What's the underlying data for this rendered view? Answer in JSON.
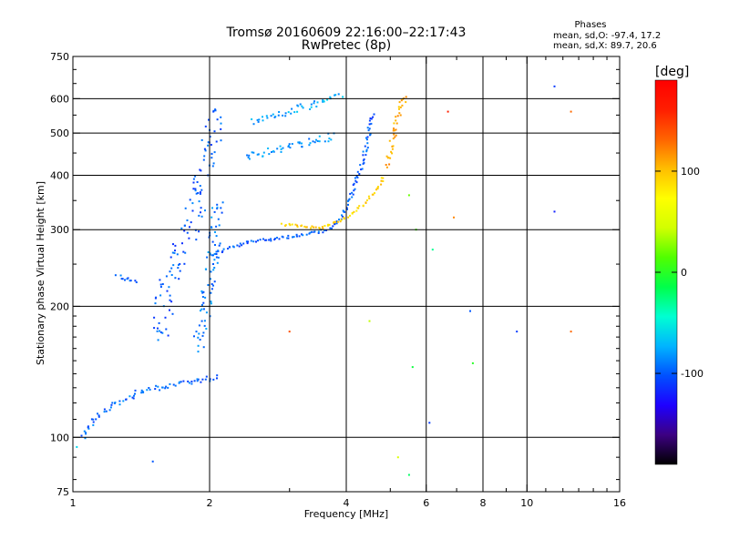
{
  "header": {
    "title_line1": "Tromsø 20160609 22:16:00–22:17:43",
    "title_line2": "RwPretec (8p)"
  },
  "stats": {
    "heading": "Phases",
    "line_o": "mean, sd,O: -97.4, 17.2",
    "line_x": "mean, sd,X:  89.7, 20.6"
  },
  "colorbar": {
    "unit_label": "[deg]",
    "ticks": [
      {
        "value": 100,
        "label": "100"
      },
      {
        "value": 0,
        "label": "0"
      },
      {
        "value": -100,
        "label": "-100"
      }
    ],
    "range": [
      -190,
      190
    ],
    "palette": [
      "#000000",
      "#3c0082",
      "#1e00ff",
      "#0050ff",
      "#00b4ff",
      "#00ffd2",
      "#00ff4b",
      "#50ff00",
      "#d2ff00",
      "#ffff00",
      "#ffbe00",
      "#ff6400",
      "#ff1e00",
      "#ff0000"
    ]
  },
  "chart_data": {
    "type": "scatter",
    "title": "Tromsø 20160609 22:16:00–22:17:43",
    "subtitle": "RwPretec (8p)",
    "xlabel": "Frequency [MHz]",
    "ylabel": "Stationary phase Virtual Height [km]",
    "xscale": "log",
    "yscale": "log",
    "xlim": [
      1,
      16
    ],
    "ylim": [
      75,
      750
    ],
    "xticks": [
      {
        "value": 1,
        "label": "1"
      },
      {
        "value": 2,
        "label": "2"
      },
      {
        "value": 4,
        "label": "4"
      },
      {
        "value": 6,
        "label": "6"
      },
      {
        "value": 8,
        "label": "8"
      },
      {
        "value": 10,
        "label": "10"
      },
      {
        "value": 16,
        "label": "16"
      }
    ],
    "yticks": [
      {
        "value": 75,
        "label": "75"
      },
      {
        "value": 100,
        "label": "100"
      },
      {
        "value": 200,
        "label": "200"
      },
      {
        "value": 300,
        "label": "300"
      },
      {
        "value": 400,
        "label": "400"
      },
      {
        "value": 500,
        "label": "500"
      },
      {
        "value": 600,
        "label": "600"
      },
      {
        "value": 750,
        "label": "750"
      }
    ],
    "x_gridlines": [
      2,
      4,
      6,
      8,
      10
    ],
    "y_gridlines": [
      100,
      200,
      300,
      400,
      500,
      600
    ],
    "grid": true,
    "color_variable": "phase [deg]",
    "traces": [
      {
        "desc": "O-mode F trace",
        "phase": -100,
        "spread": 4,
        "points": [
          [
            2.0,
            262
          ],
          [
            2.2,
            272
          ],
          [
            2.5,
            282
          ],
          [
            2.8,
            287
          ],
          [
            3.1,
            290
          ],
          [
            3.4,
            294
          ],
          [
            3.7,
            302
          ],
          [
            3.9,
            320
          ],
          [
            4.1,
            360
          ],
          [
            4.25,
            400
          ],
          [
            4.4,
            450
          ],
          [
            4.5,
            510
          ],
          [
            4.6,
            560
          ]
        ]
      },
      {
        "desc": "X-mode F trace",
        "phase": 95,
        "spread": 3,
        "points": [
          [
            2.9,
            308
          ],
          [
            3.2,
            305
          ],
          [
            3.5,
            303
          ],
          [
            3.8,
            312
          ],
          [
            4.1,
            325
          ],
          [
            4.4,
            345
          ],
          [
            4.7,
            375
          ],
          [
            4.85,
            400
          ]
        ]
      },
      {
        "desc": "O-mode F multihop",
        "phase": -85,
        "spread": 8,
        "points": [
          [
            2.4,
            440
          ],
          [
            2.7,
            455
          ],
          [
            3.0,
            465
          ],
          [
            3.3,
            475
          ],
          [
            3.6,
            485
          ],
          [
            3.8,
            492
          ]
        ]
      },
      {
        "desc": "O-mode F multihop upper",
        "phase": -75,
        "spread": 8,
        "points": [
          [
            2.5,
            530
          ],
          [
            2.8,
            550
          ],
          [
            3.1,
            565
          ],
          [
            3.4,
            580
          ],
          [
            3.7,
            600
          ],
          [
            3.9,
            615
          ]
        ]
      },
      {
        "desc": "low sporadic layer",
        "phase": -95,
        "spread": 6,
        "points": [
          [
            1.05,
            100
          ],
          [
            1.12,
            110
          ],
          [
            1.2,
            118
          ],
          [
            1.3,
            122
          ],
          [
            1.4,
            127
          ],
          [
            1.55,
            130
          ],
          [
            1.7,
            133
          ],
          [
            1.9,
            135
          ],
          [
            2.1,
            138
          ]
        ]
      },
      {
        "desc": "E-layer trace",
        "phase": -100,
        "spread": 5,
        "points": [
          [
            1.25,
            235
          ],
          [
            1.3,
            232
          ],
          [
            1.4,
            228
          ]
        ]
      },
      {
        "desc": "F spread column",
        "phase": -100,
        "spread": 22,
        "points": [
          [
            1.55,
            170
          ],
          [
            1.6,
            210
          ],
          [
            1.65,
            240
          ],
          [
            1.7,
            260
          ],
          [
            1.8,
            290
          ],
          [
            1.85,
            330
          ],
          [
            1.9,
            370
          ],
          [
            1.95,
            420
          ],
          [
            2.0,
            470
          ],
          [
            2.05,
            520
          ],
          [
            2.05,
            580
          ]
        ]
      },
      {
        "desc": "second column",
        "phase": -90,
        "spread": 14,
        "points": [
          [
            1.9,
            160
          ],
          [
            1.95,
            190
          ],
          [
            2.0,
            230
          ],
          [
            2.05,
            290
          ],
          [
            2.1,
            350
          ]
        ]
      },
      {
        "desc": "X-mode echoes near 5 MHz",
        "phase": 110,
        "spread": 6,
        "points": [
          [
            4.9,
            420
          ],
          [
            5.0,
            460
          ],
          [
            5.1,
            500
          ],
          [
            5.2,
            540
          ],
          [
            5.3,
            580
          ],
          [
            5.4,
            620
          ]
        ]
      }
    ],
    "isolated_points": [
      {
        "x": 5.5,
        "y": 360,
        "phase": 20
      },
      {
        "x": 5.7,
        "y": 300,
        "phase": 10
      },
      {
        "x": 6.2,
        "y": 270,
        "phase": -30
      },
      {
        "x": 6.7,
        "y": 560,
        "phase": 160
      },
      {
        "x": 6.9,
        "y": 320,
        "phase": 120
      },
      {
        "x": 7.5,
        "y": 195,
        "phase": -100
      },
      {
        "x": 7.6,
        "y": 148,
        "phase": 0
      },
      {
        "x": 9.5,
        "y": 175,
        "phase": -110
      },
      {
        "x": 11.5,
        "y": 640,
        "phase": -110
      },
      {
        "x": 11.5,
        "y": 330,
        "phase": -120
      },
      {
        "x": 12.5,
        "y": 560,
        "phase": 130
      },
      {
        "x": 12.5,
        "y": 175,
        "phase": 130
      },
      {
        "x": 6.1,
        "y": 108,
        "phase": -110
      },
      {
        "x": 5.5,
        "y": 82,
        "phase": -20
      },
      {
        "x": 5.2,
        "y": 90,
        "phase": 50
      },
      {
        "x": 1.5,
        "y": 88,
        "phase": -100
      },
      {
        "x": 1.02,
        "y": 95,
        "phase": -60
      },
      {
        "x": 3.0,
        "y": 175,
        "phase": 140
      },
      {
        "x": 4.5,
        "y": 185,
        "phase": 40
      },
      {
        "x": 5.6,
        "y": 145,
        "phase": -10
      }
    ]
  }
}
